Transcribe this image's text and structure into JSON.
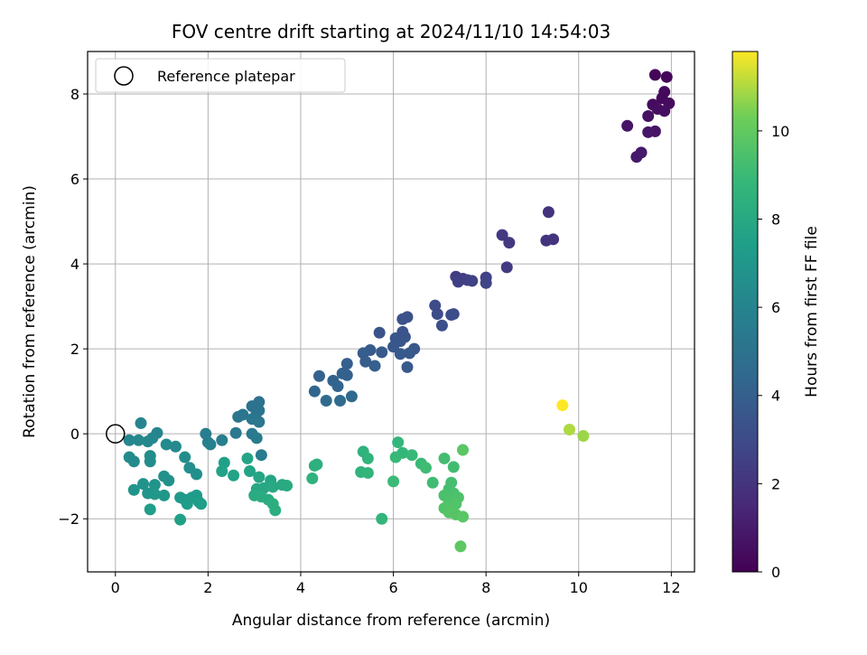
{
  "chart_data": {
    "type": "scatter",
    "title": "FOV centre drift starting at 2024/11/10 14:54:03",
    "xlabel": "Angular distance from reference (arcmin)",
    "ylabel": "Rotation from reference (arcmin)",
    "xlim": [
      -0.6,
      12.5
    ],
    "ylim": [
      -3.25,
      9.0
    ],
    "xticks": [
      0,
      2,
      4,
      6,
      8,
      10,
      12
    ],
    "yticks": [
      -2,
      0,
      2,
      4,
      6,
      8
    ],
    "grid": true,
    "legend": {
      "position": "top-left",
      "entries": [
        "Reference platepar"
      ]
    },
    "colorbar": {
      "label": "Hours from first FF file",
      "colormap": "viridis",
      "range": [
        0,
        11.8
      ],
      "ticks": [
        0,
        2,
        4,
        6,
        8,
        10
      ]
    },
    "reference_point": {
      "x": 0,
      "y": 0
    },
    "points": [
      {
        "x": 11.65,
        "y": 8.45,
        "h": 0.2
      },
      {
        "x": 11.9,
        "y": 8.4,
        "h": 0.2
      },
      {
        "x": 11.85,
        "y": 8.05,
        "h": 0.3
      },
      {
        "x": 11.8,
        "y": 7.9,
        "h": 0.3
      },
      {
        "x": 11.95,
        "y": 7.78,
        "h": 0.4
      },
      {
        "x": 11.6,
        "y": 7.75,
        "h": 0.4
      },
      {
        "x": 11.7,
        "y": 7.65,
        "h": 0.5
      },
      {
        "x": 11.85,
        "y": 7.6,
        "h": 0.5
      },
      {
        "x": 11.5,
        "y": 7.48,
        "h": 0.6
      },
      {
        "x": 11.05,
        "y": 7.25,
        "h": 0.7
      },
      {
        "x": 11.65,
        "y": 7.12,
        "h": 0.7
      },
      {
        "x": 11.5,
        "y": 7.1,
        "h": 0.8
      },
      {
        "x": 11.35,
        "y": 6.62,
        "h": 0.9
      },
      {
        "x": 11.25,
        "y": 6.52,
        "h": 0.9
      },
      {
        "x": 9.35,
        "y": 5.22,
        "h": 1.9
      },
      {
        "x": 9.3,
        "y": 4.55,
        "h": 2.0
      },
      {
        "x": 9.45,
        "y": 4.58,
        "h": 2.0
      },
      {
        "x": 8.35,
        "y": 4.68,
        "h": 2.2
      },
      {
        "x": 8.5,
        "y": 4.5,
        "h": 2.2
      },
      {
        "x": 8.45,
        "y": 3.92,
        "h": 2.3
      },
      {
        "x": 7.35,
        "y": 3.7,
        "h": 2.4
      },
      {
        "x": 7.5,
        "y": 3.65,
        "h": 2.4
      },
      {
        "x": 7.6,
        "y": 3.62,
        "h": 2.5
      },
      {
        "x": 7.4,
        "y": 3.58,
        "h": 2.5
      },
      {
        "x": 7.7,
        "y": 3.6,
        "h": 2.6
      },
      {
        "x": 8.0,
        "y": 3.68,
        "h": 2.6
      },
      {
        "x": 8.0,
        "y": 3.55,
        "h": 2.7
      },
      {
        "x": 6.9,
        "y": 3.02,
        "h": 3.0
      },
      {
        "x": 6.95,
        "y": 2.82,
        "h": 3.0
      },
      {
        "x": 7.25,
        "y": 2.8,
        "h": 3.1
      },
      {
        "x": 7.3,
        "y": 2.82,
        "h": 3.1
      },
      {
        "x": 7.05,
        "y": 2.55,
        "h": 3.2
      },
      {
        "x": 6.3,
        "y": 2.75,
        "h": 3.3
      },
      {
        "x": 6.2,
        "y": 2.7,
        "h": 3.3
      },
      {
        "x": 5.7,
        "y": 2.38,
        "h": 3.4
      },
      {
        "x": 6.2,
        "y": 2.4,
        "h": 3.4
      },
      {
        "x": 6.05,
        "y": 2.25,
        "h": 3.5
      },
      {
        "x": 6.25,
        "y": 2.28,
        "h": 3.5
      },
      {
        "x": 6.15,
        "y": 2.18,
        "h": 3.5
      },
      {
        "x": 6.0,
        "y": 2.05,
        "h": 3.6
      },
      {
        "x": 6.45,
        "y": 2.0,
        "h": 3.6
      },
      {
        "x": 6.35,
        "y": 1.9,
        "h": 3.7
      },
      {
        "x": 6.15,
        "y": 1.88,
        "h": 3.7
      },
      {
        "x": 6.3,
        "y": 1.57,
        "h": 3.7
      },
      {
        "x": 5.5,
        "y": 1.97,
        "h": 3.8
      },
      {
        "x": 5.75,
        "y": 1.92,
        "h": 3.8
      },
      {
        "x": 5.35,
        "y": 1.9,
        "h": 3.9
      },
      {
        "x": 5.4,
        "y": 1.7,
        "h": 3.9
      },
      {
        "x": 5.6,
        "y": 1.6,
        "h": 4.0
      },
      {
        "x": 5.0,
        "y": 1.65,
        "h": 4.0
      },
      {
        "x": 4.9,
        "y": 1.42,
        "h": 4.1
      },
      {
        "x": 5.0,
        "y": 1.38,
        "h": 4.1
      },
      {
        "x": 4.4,
        "y": 1.36,
        "h": 4.2
      },
      {
        "x": 4.7,
        "y": 1.25,
        "h": 4.2
      },
      {
        "x": 4.8,
        "y": 1.12,
        "h": 4.3
      },
      {
        "x": 4.3,
        "y": 1.0,
        "h": 4.4
      },
      {
        "x": 5.1,
        "y": 0.88,
        "h": 4.5
      },
      {
        "x": 4.55,
        "y": 0.78,
        "h": 4.6
      },
      {
        "x": 4.85,
        "y": 0.78,
        "h": 4.6
      },
      {
        "x": 3.1,
        "y": 0.75,
        "h": 5.0
      },
      {
        "x": 2.95,
        "y": 0.65,
        "h": 5.0
      },
      {
        "x": 3.1,
        "y": 0.55,
        "h": 5.1
      },
      {
        "x": 3.05,
        "y": 0.5,
        "h": 5.1
      },
      {
        "x": 2.75,
        "y": 0.45,
        "h": 5.2
      },
      {
        "x": 2.65,
        "y": 0.4,
        "h": 5.2
      },
      {
        "x": 2.95,
        "y": 0.35,
        "h": 5.3
      },
      {
        "x": 3.1,
        "y": 0.28,
        "h": 5.3
      },
      {
        "x": 2.6,
        "y": 0.02,
        "h": 5.4
      },
      {
        "x": 2.95,
        "y": 0.0,
        "h": 5.4
      },
      {
        "x": 3.05,
        "y": -0.1,
        "h": 5.5
      },
      {
        "x": 3.15,
        "y": -0.5,
        "h": 5.5
      },
      {
        "x": 1.95,
        "y": 0.0,
        "h": 5.6
      },
      {
        "x": 2.0,
        "y": -0.2,
        "h": 5.7
      },
      {
        "x": 2.3,
        "y": -0.15,
        "h": 5.7
      },
      {
        "x": 2.05,
        "y": -0.25,
        "h": 5.8
      },
      {
        "x": 0.55,
        "y": 0.25,
        "h": 6.0
      },
      {
        "x": 0.9,
        "y": 0.02,
        "h": 6.0
      },
      {
        "x": 0.8,
        "y": -0.1,
        "h": 6.1
      },
      {
        "x": 0.3,
        "y": -0.15,
        "h": 6.1
      },
      {
        "x": 0.5,
        "y": -0.15,
        "h": 6.2
      },
      {
        "x": 0.7,
        "y": -0.18,
        "h": 6.2
      },
      {
        "x": 1.1,
        "y": -0.25,
        "h": 6.3
      },
      {
        "x": 1.3,
        "y": -0.3,
        "h": 6.3
      },
      {
        "x": 0.3,
        "y": -0.55,
        "h": 6.4
      },
      {
        "x": 0.4,
        "y": -0.65,
        "h": 6.4
      },
      {
        "x": 0.75,
        "y": -0.52,
        "h": 6.5
      },
      {
        "x": 0.75,
        "y": -0.65,
        "h": 6.5
      },
      {
        "x": 1.5,
        "y": -0.55,
        "h": 6.5
      },
      {
        "x": 1.6,
        "y": -0.8,
        "h": 6.6
      },
      {
        "x": 1.75,
        "y": -0.95,
        "h": 6.6
      },
      {
        "x": 1.05,
        "y": -1.0,
        "h": 6.7
      },
      {
        "x": 1.15,
        "y": -1.1,
        "h": 6.7
      },
      {
        "x": 0.6,
        "y": -1.18,
        "h": 6.8
      },
      {
        "x": 0.85,
        "y": -1.2,
        "h": 6.8
      },
      {
        "x": 0.4,
        "y": -1.32,
        "h": 6.9
      },
      {
        "x": 0.7,
        "y": -1.4,
        "h": 6.9
      },
      {
        "x": 0.85,
        "y": -1.42,
        "h": 7.0
      },
      {
        "x": 1.05,
        "y": -1.45,
        "h": 7.0
      },
      {
        "x": 1.4,
        "y": -1.5,
        "h": 7.1
      },
      {
        "x": 1.5,
        "y": -1.55,
        "h": 7.1
      },
      {
        "x": 1.65,
        "y": -1.5,
        "h": 7.2
      },
      {
        "x": 1.75,
        "y": -1.45,
        "h": 7.2
      },
      {
        "x": 1.8,
        "y": -1.6,
        "h": 7.3
      },
      {
        "x": 1.55,
        "y": -1.65,
        "h": 7.3
      },
      {
        "x": 1.85,
        "y": -1.65,
        "h": 7.4
      },
      {
        "x": 0.75,
        "y": -1.78,
        "h": 7.4
      },
      {
        "x": 1.4,
        "y": -2.02,
        "h": 7.5
      },
      {
        "x": 2.35,
        "y": -0.68,
        "h": 7.5
      },
      {
        "x": 2.3,
        "y": -0.88,
        "h": 7.6
      },
      {
        "x": 2.55,
        "y": -0.98,
        "h": 7.6
      },
      {
        "x": 2.85,
        "y": -0.58,
        "h": 7.7
      },
      {
        "x": 2.9,
        "y": -0.88,
        "h": 7.7
      },
      {
        "x": 3.1,
        "y": -1.02,
        "h": 7.8
      },
      {
        "x": 3.35,
        "y": -1.1,
        "h": 7.8
      },
      {
        "x": 3.05,
        "y": -1.3,
        "h": 7.9
      },
      {
        "x": 3.2,
        "y": -1.28,
        "h": 7.9
      },
      {
        "x": 3.4,
        "y": -1.25,
        "h": 8.0
      },
      {
        "x": 3.6,
        "y": -1.2,
        "h": 8.0
      },
      {
        "x": 3.7,
        "y": -1.22,
        "h": 8.1
      },
      {
        "x": 3.0,
        "y": -1.45,
        "h": 8.1
      },
      {
        "x": 3.15,
        "y": -1.48,
        "h": 8.2
      },
      {
        "x": 3.3,
        "y": -1.55,
        "h": 8.2
      },
      {
        "x": 3.4,
        "y": -1.65,
        "h": 8.3
      },
      {
        "x": 3.45,
        "y": -1.8,
        "h": 8.3
      },
      {
        "x": 4.3,
        "y": -0.75,
        "h": 8.4
      },
      {
        "x": 4.35,
        "y": -0.72,
        "h": 8.4
      },
      {
        "x": 4.25,
        "y": -1.05,
        "h": 8.5
      },
      {
        "x": 5.35,
        "y": -0.42,
        "h": 8.5
      },
      {
        "x": 5.45,
        "y": -0.58,
        "h": 8.6
      },
      {
        "x": 5.3,
        "y": -0.9,
        "h": 8.6
      },
      {
        "x": 5.45,
        "y": -0.92,
        "h": 8.7
      },
      {
        "x": 5.75,
        "y": -2.0,
        "h": 8.7
      },
      {
        "x": 6.1,
        "y": -0.2,
        "h": 8.8
      },
      {
        "x": 6.2,
        "y": -0.45,
        "h": 8.8
      },
      {
        "x": 6.05,
        "y": -0.55,
        "h": 8.9
      },
      {
        "x": 6.4,
        "y": -0.5,
        "h": 8.9
      },
      {
        "x": 6.0,
        "y": -1.12,
        "h": 9.0
      },
      {
        "x": 6.6,
        "y": -0.7,
        "h": 9.0
      },
      {
        "x": 6.7,
        "y": -0.8,
        "h": 9.1
      },
      {
        "x": 6.85,
        "y": -1.15,
        "h": 9.1
      },
      {
        "x": 7.1,
        "y": -0.58,
        "h": 9.2
      },
      {
        "x": 7.3,
        "y": -0.78,
        "h": 9.2
      },
      {
        "x": 7.25,
        "y": -1.15,
        "h": 9.3
      },
      {
        "x": 7.2,
        "y": -1.3,
        "h": 9.3
      },
      {
        "x": 7.1,
        "y": -1.45,
        "h": 9.4
      },
      {
        "x": 7.3,
        "y": -1.4,
        "h": 9.4
      },
      {
        "x": 7.4,
        "y": -1.5,
        "h": 9.5
      },
      {
        "x": 7.2,
        "y": -1.6,
        "h": 9.5
      },
      {
        "x": 7.35,
        "y": -1.65,
        "h": 9.6
      },
      {
        "x": 7.1,
        "y": -1.75,
        "h": 9.6
      },
      {
        "x": 7.2,
        "y": -1.85,
        "h": 9.7
      },
      {
        "x": 7.35,
        "y": -1.9,
        "h": 9.7
      },
      {
        "x": 7.5,
        "y": -1.95,
        "h": 9.8
      },
      {
        "x": 7.5,
        "y": -0.38,
        "h": 9.8
      },
      {
        "x": 7.45,
        "y": -2.65,
        "h": 9.9
      },
      {
        "x": 9.65,
        "y": 0.67,
        "h": 11.8
      },
      {
        "x": 9.8,
        "y": 0.1,
        "h": 11.0
      },
      {
        "x": 10.1,
        "y": -0.05,
        "h": 10.8
      }
    ]
  }
}
